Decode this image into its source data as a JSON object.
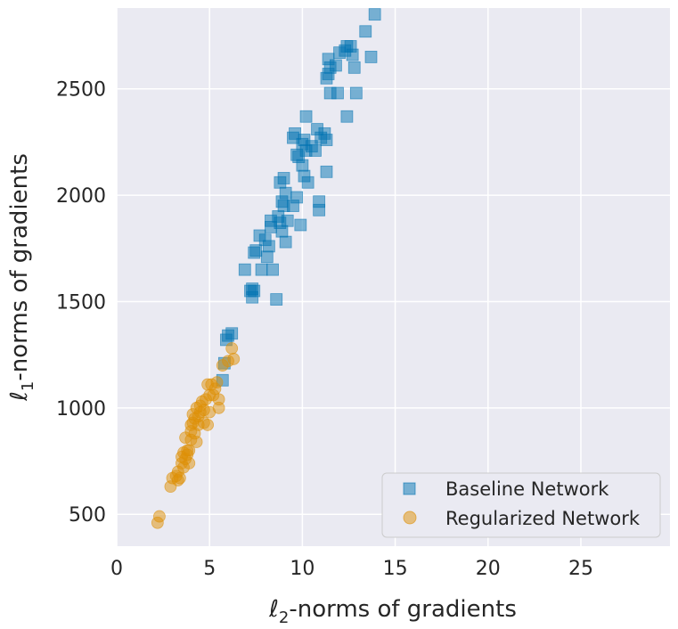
{
  "chart_data": {
    "type": "scatter",
    "xlabel": {
      "prefix": "ℓ",
      "sub": "2",
      "rest": "-norms of gradients"
    },
    "ylabel": {
      "prefix": "ℓ",
      "sub": "1",
      "rest": "-norms of gradients"
    },
    "xlim": [
      0,
      29.8
    ],
    "ylim": [
      350,
      2880
    ],
    "x_ticks": [
      0,
      5,
      10,
      15,
      20,
      25
    ],
    "y_ticks": [
      500,
      1000,
      1500,
      2000,
      2500
    ],
    "grid": true,
    "legend_position": "bottom-right",
    "colors": {
      "background": "#eaeaf2",
      "grid": "#ffffff",
      "baseline": "#0173b2",
      "regularized": "#de8f05"
    },
    "series": [
      {
        "name": "Baseline Network",
        "marker": "square",
        "points": [
          [
            5.7,
            1130
          ],
          [
            5.8,
            1210
          ],
          [
            5.9,
            1320
          ],
          [
            6.0,
            1340
          ],
          [
            6.2,
            1350
          ],
          [
            7.2,
            1550
          ],
          [
            7.3,
            1520
          ],
          [
            7.3,
            1560
          ],
          [
            7.4,
            1550
          ],
          [
            7.4,
            1730
          ],
          [
            7.5,
            1740
          ],
          [
            6.9,
            1650
          ],
          [
            7.7,
            1810
          ],
          [
            7.8,
            1650
          ],
          [
            8.0,
            1790
          ],
          [
            8.1,
            1710
          ],
          [
            8.2,
            1760
          ],
          [
            8.3,
            1850
          ],
          [
            8.3,
            1880
          ],
          [
            8.4,
            1650
          ],
          [
            8.6,
            1510
          ],
          [
            8.7,
            1900
          ],
          [
            8.8,
            1870
          ],
          [
            8.8,
            2060
          ],
          [
            8.9,
            1830
          ],
          [
            8.9,
            1970
          ],
          [
            9.0,
            2080
          ],
          [
            9.0,
            1950
          ],
          [
            9.1,
            2010
          ],
          [
            9.1,
            1780
          ],
          [
            9.2,
            1880
          ],
          [
            9.5,
            1950
          ],
          [
            9.5,
            2270
          ],
          [
            9.6,
            2290
          ],
          [
            9.7,
            2190
          ],
          [
            9.7,
            1990
          ],
          [
            9.8,
            2180
          ],
          [
            9.9,
            1860
          ],
          [
            10.0,
            2140
          ],
          [
            10.0,
            2240
          ],
          [
            10.1,
            2260
          ],
          [
            10.1,
            2090
          ],
          [
            10.2,
            2370
          ],
          [
            10.2,
            2210
          ],
          [
            10.3,
            2060
          ],
          [
            10.5,
            2230
          ],
          [
            10.7,
            2210
          ],
          [
            10.8,
            2310
          ],
          [
            10.9,
            1970
          ],
          [
            10.9,
            1930
          ],
          [
            11.0,
            2270
          ],
          [
            11.2,
            2290
          ],
          [
            11.3,
            2260
          ],
          [
            11.3,
            2110
          ],
          [
            11.3,
            2550
          ],
          [
            11.4,
            2570
          ],
          [
            11.4,
            2640
          ],
          [
            11.5,
            2480
          ],
          [
            11.5,
            2600
          ],
          [
            11.8,
            2610
          ],
          [
            11.9,
            2480
          ],
          [
            12.0,
            2670
          ],
          [
            12.3,
            2680
          ],
          [
            12.4,
            2370
          ],
          [
            12.4,
            2700
          ],
          [
            12.6,
            2700
          ],
          [
            12.7,
            2660
          ],
          [
            12.8,
            2600
          ],
          [
            12.9,
            2480
          ],
          [
            13.4,
            2770
          ],
          [
            13.7,
            2650
          ],
          [
            13.9,
            2850
          ]
        ]
      },
      {
        "name": "Regularized Network",
        "marker": "circle",
        "points": [
          [
            2.2,
            460
          ],
          [
            2.3,
            490
          ],
          [
            2.9,
            630
          ],
          [
            3.0,
            670
          ],
          [
            3.2,
            680
          ],
          [
            3.3,
            700
          ],
          [
            3.3,
            660
          ],
          [
            3.4,
            670
          ],
          [
            3.5,
            740
          ],
          [
            3.5,
            770
          ],
          [
            3.6,
            790
          ],
          [
            3.6,
            720
          ],
          [
            3.7,
            860
          ],
          [
            3.7,
            760
          ],
          [
            3.8,
            800
          ],
          [
            3.8,
            780
          ],
          [
            3.9,
            740
          ],
          [
            3.9,
            800
          ],
          [
            4.0,
            850
          ],
          [
            4.0,
            890
          ],
          [
            4.0,
            920
          ],
          [
            4.1,
            930
          ],
          [
            4.1,
            970
          ],
          [
            4.2,
            880
          ],
          [
            4.2,
            950
          ],
          [
            4.3,
            840
          ],
          [
            4.3,
            1000
          ],
          [
            4.4,
            920
          ],
          [
            4.4,
            960
          ],
          [
            4.5,
            980
          ],
          [
            4.5,
            1010
          ],
          [
            4.6,
            1030
          ],
          [
            4.7,
            930
          ],
          [
            4.7,
            990
          ],
          [
            4.8,
            1040
          ],
          [
            4.9,
            1110
          ],
          [
            4.9,
            920
          ],
          [
            5.0,
            1060
          ],
          [
            5.0,
            980
          ],
          [
            5.1,
            1110
          ],
          [
            5.2,
            1060
          ],
          [
            5.3,
            1090
          ],
          [
            5.4,
            1120
          ],
          [
            5.5,
            1000
          ],
          [
            5.5,
            1040
          ],
          [
            5.7,
            1200
          ],
          [
            6.0,
            1220
          ],
          [
            6.2,
            1280
          ],
          [
            6.3,
            1230
          ]
        ]
      }
    ]
  }
}
